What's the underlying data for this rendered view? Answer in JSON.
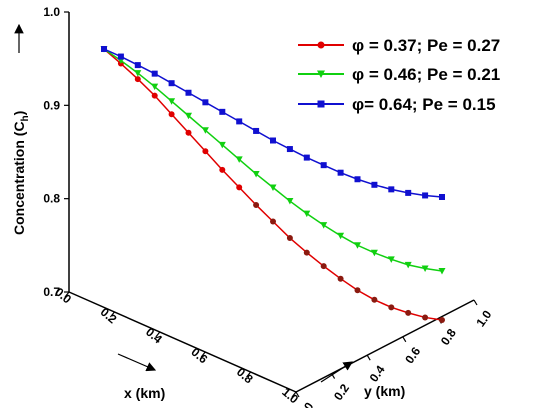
{
  "chart_data": {
    "type": "line",
    "title": "",
    "zlabel_main": "Concentration (C",
    "zlabel_sub": "h",
    "zlabel_close": ")",
    "xlabel": "x (km)",
    "ylabel": "y (km)",
    "zlim": [
      0.7,
      1.0
    ],
    "xlim": [
      0.0,
      1.0
    ],
    "ylim": [
      0.0,
      1.0
    ],
    "z_ticks": [
      "0.7",
      "0.8",
      "0.9",
      "1.0"
    ],
    "x_ticks": [
      "0.0",
      "0.2",
      "0.4",
      "0.6",
      "0.8",
      "1.0"
    ],
    "y_ticks": [
      "0.0",
      "0.2",
      "0.4",
      "0.6",
      "0.8",
      "1.0"
    ],
    "legend_position": "top-right",
    "grid": false,
    "series": [
      {
        "name": "φ = 0.37; Pe = 0.27",
        "color": "#e00000",
        "marker": "circle",
        "x": [
          0.0,
          0.05,
          0.1,
          0.15,
          0.2,
          0.25,
          0.3,
          0.35,
          0.4,
          0.45,
          0.5,
          0.55,
          0.6,
          0.65,
          0.7,
          0.75,
          0.8,
          0.85,
          0.9,
          0.95,
          1.0
        ],
        "y": [
          0.0,
          0.05,
          0.1,
          0.15,
          0.2,
          0.25,
          0.3,
          0.35,
          0.4,
          0.45,
          0.5,
          0.55,
          0.6,
          0.65,
          0.7,
          0.75,
          0.8,
          0.85,
          0.9,
          0.95,
          1.0
        ],
        "z": [
          0.962,
          0.949,
          0.935,
          0.92,
          0.903,
          0.886,
          0.869,
          0.852,
          0.836,
          0.82,
          0.805,
          0.79,
          0.777,
          0.765,
          0.754,
          0.744,
          0.736,
          0.73,
          0.726,
          0.723,
          0.722
        ]
      },
      {
        "name": "φ = 0.46; Pe = 0.21",
        "color": "#10d010",
        "marker": "triangle-down",
        "x": [
          0.0,
          0.05,
          0.1,
          0.15,
          0.2,
          0.25,
          0.3,
          0.35,
          0.4,
          0.45,
          0.5,
          0.55,
          0.6,
          0.65,
          0.7,
          0.75,
          0.8,
          0.85,
          0.9,
          0.95,
          1.0
        ],
        "y": [
          0.0,
          0.05,
          0.1,
          0.15,
          0.2,
          0.25,
          0.3,
          0.35,
          0.4,
          0.45,
          0.5,
          0.55,
          0.6,
          0.65,
          0.7,
          0.75,
          0.8,
          0.85,
          0.9,
          0.95,
          1.0
        ],
        "z": [
          0.962,
          0.952,
          0.941,
          0.929,
          0.916,
          0.903,
          0.89,
          0.877,
          0.864,
          0.851,
          0.839,
          0.827,
          0.816,
          0.806,
          0.797,
          0.789,
          0.783,
          0.778,
          0.774,
          0.772,
          0.771
        ]
      },
      {
        "name": "φ= 0.64; Pe = 0.15",
        "color": "#1010d0",
        "marker": "square",
        "x": [
          0.0,
          0.05,
          0.1,
          0.15,
          0.2,
          0.25,
          0.3,
          0.35,
          0.4,
          0.45,
          0.5,
          0.55,
          0.6,
          0.65,
          0.7,
          0.75,
          0.8,
          0.85,
          0.9,
          0.95,
          1.0
        ],
        "y": [
          0.0,
          0.05,
          0.1,
          0.15,
          0.2,
          0.25,
          0.3,
          0.35,
          0.4,
          0.45,
          0.5,
          0.55,
          0.6,
          0.65,
          0.7,
          0.75,
          0.8,
          0.85,
          0.9,
          0.95,
          1.0
        ],
        "z": [
          0.962,
          0.956,
          0.949,
          0.942,
          0.934,
          0.926,
          0.918,
          0.91,
          0.902,
          0.894,
          0.886,
          0.879,
          0.872,
          0.866,
          0.86,
          0.855,
          0.851,
          0.848,
          0.846,
          0.845,
          0.845
        ]
      }
    ]
  }
}
